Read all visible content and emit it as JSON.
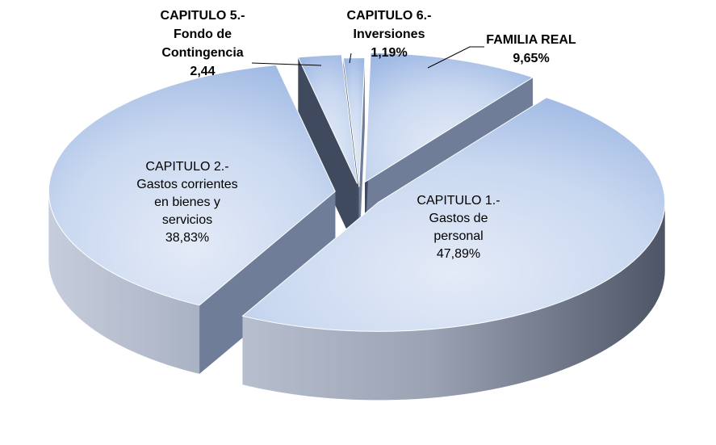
{
  "chart_data": {
    "type": "pie",
    "style": "3d-exploded",
    "slices": [
      {
        "key": "familia",
        "label_lines": [
          "FAMILIA REAL",
          "9,65%"
        ],
        "value": 9.65
      },
      {
        "key": "cap1",
        "label_lines": [
          "CAPITULO 1.-",
          "Gastos de",
          "personal",
          "47,89%"
        ],
        "value": 47.89
      },
      {
        "key": "cap2",
        "label_lines": [
          "CAPITULO 2.-",
          "Gastos corrientes",
          "en bienes y",
          "servicios",
          "38,83%"
        ],
        "value": 38.83
      },
      {
        "key": "cap5",
        "label_lines": [
          "CAPITULO 5.-",
          "Fondo de",
          "Contingencia",
          "2,44"
        ],
        "value": 2.44
      },
      {
        "key": "cap6",
        "label_lines": [
          "CAPITULO 6.-",
          "Inversiones",
          "1,19%"
        ],
        "value": 1.19
      }
    ],
    "colors": {
      "top_light": "#dde6f5",
      "top_dark": "#9db7e2",
      "side_light": "#c3cbdb",
      "side_dark": "#4b5466"
    }
  }
}
